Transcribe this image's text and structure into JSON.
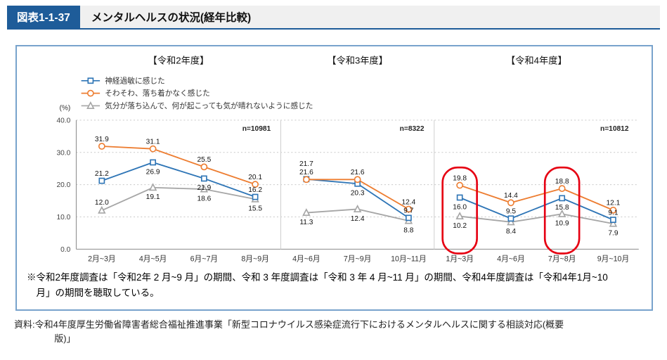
{
  "header": {
    "fig_label": "図表1-1-37",
    "title": "メンタルヘルスの状況(経年比較)"
  },
  "colors": {
    "header_blue": "#1e5c99",
    "panel_border": "#78a3cc"
  },
  "chart_data": {
    "type": "line",
    "unit_label": "(%)",
    "ylim": [
      0,
      40
    ],
    "ytick_step": 10,
    "grid": true,
    "legend_position": "top-left",
    "series_meta": [
      {
        "key": "nervous",
        "label": "神経過敏に感じた",
        "color": "#2e75b6",
        "marker": "square"
      },
      {
        "key": "restless",
        "label": "そわそわ、落ち着かなく感じた",
        "color": "#ed7d31",
        "marker": "circle"
      },
      {
        "key": "depressed",
        "label": "気分が落ち込んで、何が起こっても気が晴れないように感じた",
        "color": "#a6a6a6",
        "marker": "triangle"
      }
    ],
    "groups": [
      {
        "title": "【令和2年度】",
        "n_label": "n=10981",
        "categories": [
          "2月~3月",
          "4月~5月",
          "6月~7月",
          "8月~9月"
        ],
        "series": {
          "nervous": [
            21.2,
            26.9,
            21.9,
            16.2
          ],
          "restless": [
            31.9,
            31.1,
            25.5,
            20.1
          ],
          "depressed": [
            12.0,
            19.1,
            18.6,
            15.5
          ]
        }
      },
      {
        "title": "【令和3年度】",
        "n_label": "n=8322",
        "categories": [
          "4月~6月",
          "7月~9月",
          "10月~11月"
        ],
        "series": {
          "nervous": [
            21.7,
            20.3,
            9.7
          ],
          "restless": [
            21.6,
            21.6,
            12.4
          ],
          "depressed": [
            11.3,
            12.4,
            8.8
          ]
        }
      },
      {
        "title": "【令和4年度】",
        "n_label": "n=10812",
        "categories": [
          "1月~3月",
          "4月~6月",
          "7月~8月",
          "9月~10月"
        ],
        "series": {
          "nervous": [
            16.0,
            9.5,
            15.8,
            9.1
          ],
          "restless": [
            19.8,
            14.4,
            18.8,
            12.1
          ],
          "depressed": [
            10.2,
            8.4,
            10.9,
            7.9
          ]
        }
      }
    ],
    "highlights": [
      {
        "group": 2,
        "index": 0
      },
      {
        "group": 2,
        "index": 2
      }
    ],
    "highlight_color": "#e60012"
  },
  "notes": {
    "footnote": "※令和2年度調査は「令和2年 2 月~9 月」の期間、令和 3 年度調査は「令和 3 年 4 月~11 月」の期間、令和4年度調査は「令和4年1月~10月」の期間を聴取している。",
    "source": "資料:令和4年度厚生労働省障害者総合福祉推進事業「新型コロナウイルス感染症流行下におけるメンタルヘルスに関する相談対応(概要版)」"
  }
}
